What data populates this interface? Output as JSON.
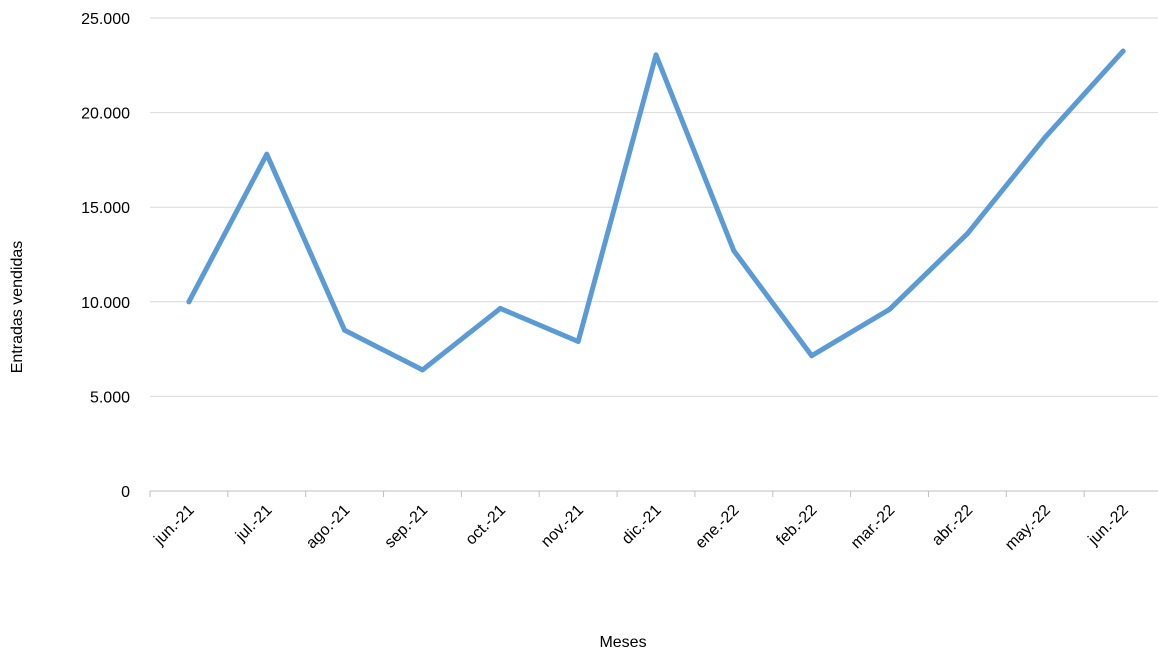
{
  "chart_data": {
    "type": "line",
    "title": "",
    "xlabel": "Meses",
    "ylabel": "Entradas vendidas",
    "categories": [
      "jun.-21",
      "jul.-21",
      "ago.-21",
      "sep.-21",
      "oct.-21",
      "nov.-21",
      "dic.-21",
      "ene.-22",
      "feb.-22",
      "mar.-22",
      "abr.-22",
      "may.-22",
      "jun.-22"
    ],
    "series": [
      {
        "values": [
          10000,
          17800,
          8500,
          6400,
          9650,
          7900,
          23050,
          12700,
          7150,
          9600,
          13600,
          18700,
          23250
        ]
      }
    ],
    "ylim": [
      0,
      25000
    ],
    "yticks": [
      0,
      5000,
      10000,
      15000,
      20000,
      25000
    ],
    "ytick_labels": [
      "0",
      "5.000",
      "10.000",
      "15.000",
      "20.000",
      "25.000"
    ],
    "grid": "horizontal",
    "legend": "none",
    "colors": {
      "line": "#5b9bd5",
      "grid": "#d9d9d9",
      "axis": "#bfbfbf"
    }
  }
}
